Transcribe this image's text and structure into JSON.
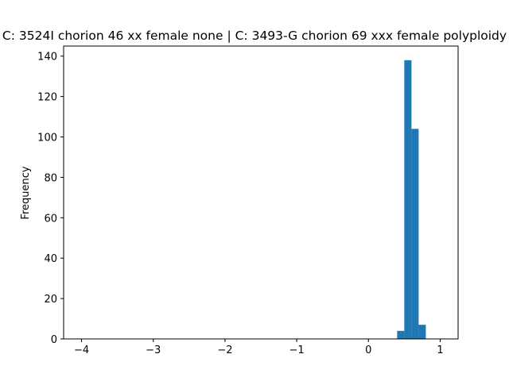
{
  "chart_data": {
    "type": "bar",
    "title": "C: 3524I chorion 46 xx female none | C: 3493-G chorion 69 xxx female polyploidy",
    "xlabel": "",
    "ylabel": "Frequency",
    "xlim": [
      -4.25,
      1.25
    ],
    "ylim": [
      0,
      145
    ],
    "xticks": [
      -4,
      -3,
      -2,
      -1,
      0,
      1
    ],
    "xtick_labels": [
      "−4",
      "−3",
      "−2",
      "−1",
      "0",
      "1"
    ],
    "yticks": [
      0,
      20,
      40,
      60,
      80,
      100,
      120,
      140
    ],
    "ytick_labels": [
      "0",
      "20",
      "40",
      "60",
      "80",
      "100",
      "120",
      "140"
    ],
    "bin_width": 0.1,
    "bin_starts": [
      0.4,
      0.5,
      0.6,
      0.7
    ],
    "values": [
      4,
      138,
      104,
      7
    ],
    "bar_color": "#1f77b4",
    "grid": false
  }
}
